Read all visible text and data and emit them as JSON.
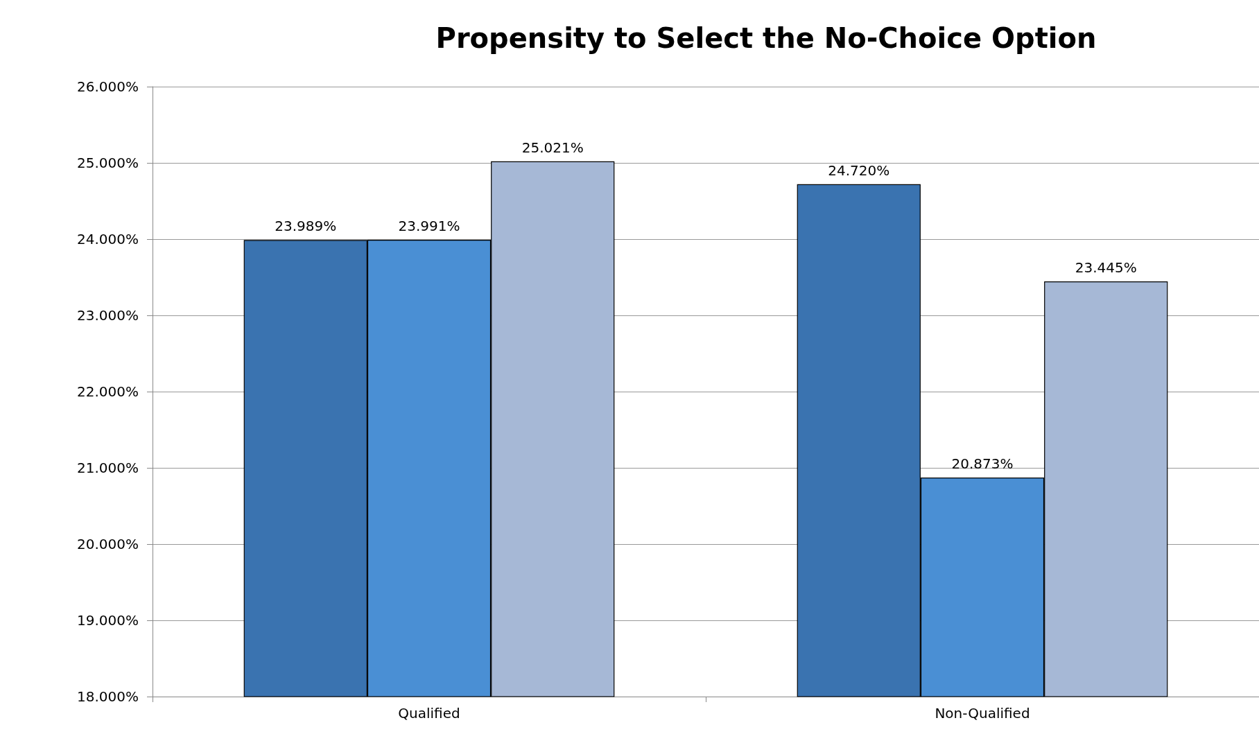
{
  "chart_data": {
    "type": "bar",
    "title": "Propensity to Select the No-Choice Option",
    "categories": [
      "Qualified",
      "Non-Qualified"
    ],
    "series": [
      {
        "color": "#3a73b0",
        "values": [
          23.989,
          24.72
        ],
        "value_labels": [
          "23.989%",
          "24.720%"
        ]
      },
      {
        "color": "#4a8fd4",
        "values": [
          23.991,
          20.873
        ],
        "value_labels": [
          "23.991%",
          "20.873%"
        ]
      },
      {
        "color": "#a6b8d6",
        "values": [
          25.021,
          23.445
        ],
        "value_labels": [
          "25.021%",
          "23.445%"
        ]
      }
    ],
    "ylim": [
      18,
      26
    ],
    "yticks": [
      {
        "value": 18,
        "label": "18.000%"
      },
      {
        "value": 19,
        "label": "19.000%"
      },
      {
        "value": 20,
        "label": "20.000%"
      },
      {
        "value": 21,
        "label": "21.000%"
      },
      {
        "value": 22,
        "label": "22.000%"
      },
      {
        "value": 23,
        "label": "23.000%"
      },
      {
        "value": 24,
        "label": "24.000%"
      },
      {
        "value": 25,
        "label": "25.000%"
      },
      {
        "value": 26,
        "label": "26.000%"
      }
    ],
    "grid": "y"
  }
}
